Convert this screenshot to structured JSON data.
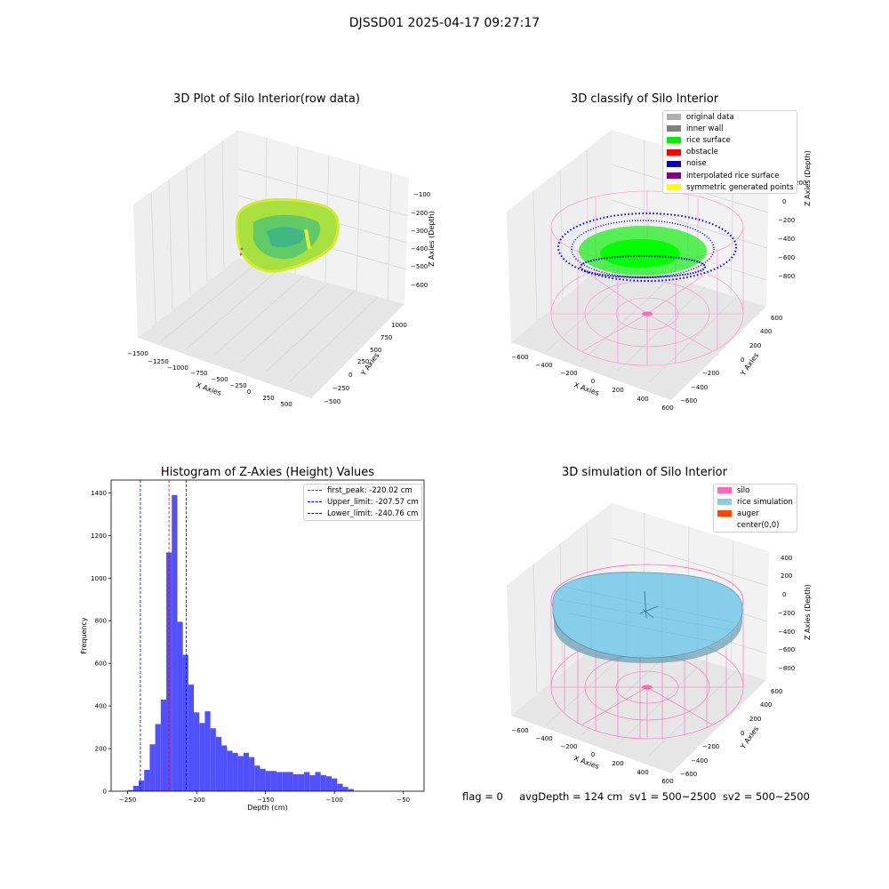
{
  "title": "DJSSD01 2025-04-17 09:27:17",
  "footer": "flag = 0     avgDepth = 124 cm  sv1 = 500~2500  sv2 = 500~2500",
  "colors": {
    "histogram_bar": "#5050ff",
    "peak_line": "#ff0000",
    "limit_line": "#0000cc",
    "silo": "#ff69b4",
    "rice_simulation": "#87ceeb",
    "auger": "#ff4500"
  },
  "chart_data": [
    {
      "type": "scatter",
      "projection": "3d",
      "title": "3D Plot of Silo Interior(row data)",
      "xlabel": "X Axies",
      "ylabel": "Y Axies",
      "zlabel": "Z Axies (Depth)",
      "x_ticks": [
        "−1500",
        "−1250",
        "−1000",
        "−750",
        "−500",
        "−250",
        "0",
        "250",
        "500"
      ],
      "y_ticks": [
        "−500",
        "−250",
        "0",
        "250",
        "500",
        "750",
        "1000"
      ],
      "z_ticks": [
        "−100",
        "−200",
        "−300",
        "−400",
        "−500",
        "−600"
      ],
      "colormap": "viridis-yellow",
      "grid": true
    },
    {
      "type": "scatter",
      "projection": "3d",
      "title": "3D classify of Silo Interior",
      "xlabel": "X Axies",
      "ylabel": "Y Axies",
      "zlabel": "Z Axies (Depth)",
      "x_ticks": [
        "−600",
        "−400",
        "−200",
        "0",
        "200",
        "400",
        "600"
      ],
      "y_ticks": [
        "−600",
        "−400",
        "−200",
        "0",
        "200",
        "400",
        "600"
      ],
      "z_ticks": [
        "200",
        "0",
        "−200",
        "−400",
        "−600",
        "−800"
      ],
      "z_top_tick": "200",
      "legend_position": "top-right",
      "legend": [
        {
          "label": "original data",
          "color": "#b0b0b0"
        },
        {
          "label": "inner wall",
          "color": "#808080"
        },
        {
          "label": "rice surface",
          "color": "#00ee00"
        },
        {
          "label": "obstacle",
          "color": "#ff0000"
        },
        {
          "label": "noise",
          "color": "#0000dd"
        },
        {
          "label": "interpolated rice surface",
          "color": "#800080"
        },
        {
          "label": "symmetric generated points",
          "color": "#ffff00"
        }
      ],
      "grid": true
    },
    {
      "type": "bar",
      "title": "Histogram of Z-Axies (Height) Values",
      "xlabel": "Depth (cm)",
      "ylabel": "Frequency",
      "xlim": [
        -262,
        -35
      ],
      "ylim": [
        0,
        1460
      ],
      "x_ticks": [
        -250,
        -200,
        -150,
        -100,
        -50
      ],
      "y_ticks": [
        0,
        200,
        400,
        600,
        800,
        1000,
        1200,
        1400
      ],
      "bin_edges": [
        -250,
        -246,
        -242,
        -238,
        -234,
        -230,
        -226,
        -222,
        -218,
        -214,
        -210,
        -206,
        -202,
        -198,
        -194,
        -190,
        -186,
        -182,
        -178,
        -174,
        -170,
        -166,
        -162,
        -158,
        -154,
        -150,
        -146,
        -142,
        -138,
        -134,
        -130,
        -126,
        -122,
        -118,
        -114,
        -110,
        -106,
        -102,
        -98,
        -94,
        -90,
        -86,
        -82
      ],
      "counts": [
        5,
        25,
        50,
        100,
        220,
        315,
        430,
        1120,
        1390,
        795,
        640,
        500,
        370,
        320,
        375,
        295,
        255,
        215,
        190,
        180,
        165,
        180,
        160,
        120,
        105,
        95,
        95,
        90,
        90,
        90,
        80,
        80,
        90,
        75,
        90,
        75,
        70,
        60,
        35,
        20,
        10,
        0
      ],
      "vlines": [
        {
          "label": "first_peak: -220.02 cm",
          "x": -220.02,
          "color": "#ff0000"
        },
        {
          "label": "Upper_limit: -207.57 cm",
          "x": -207.57,
          "color": "#0000cc"
        },
        {
          "label": "Lower_limit: -240.76 cm",
          "x": -240.76,
          "color": "#0000cc"
        }
      ],
      "legend_position": "top-right",
      "grid": false
    },
    {
      "type": "area",
      "projection": "3d",
      "title": "3D simulation of Silo Interior",
      "xlabel": "X Axies",
      "ylabel": "Y Axies",
      "zlabel": "Z Axies (Depth)",
      "x_ticks": [
        "−600",
        "−400",
        "−200",
        "0",
        "200",
        "400",
        "600"
      ],
      "y_ticks": [
        "−600",
        "−400",
        "−200",
        "0",
        "200",
        "400",
        "600"
      ],
      "z_ticks": [
        "400",
        "200",
        "0",
        "−200",
        "−400",
        "−600",
        "−800"
      ],
      "legend_position": "top-right",
      "legend": [
        {
          "label": "silo",
          "color": "#ff69b4"
        },
        {
          "label": "rice simulation",
          "color": "#87ceeb"
        },
        {
          "label": "auger",
          "color": "#ff4500"
        },
        {
          "label": "center(0,0)",
          "color": ""
        }
      ],
      "grid": true
    }
  ]
}
